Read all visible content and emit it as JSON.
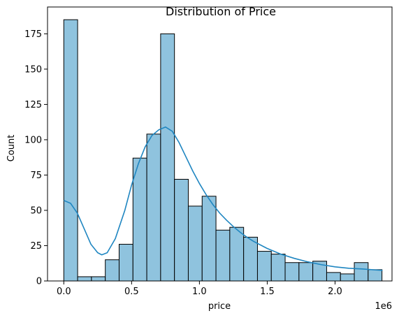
{
  "chart_data": {
    "type": "bar",
    "title": "Distribution of Price",
    "xlabel": "price",
    "ylabel": "Count",
    "x_offset_label": "1e6",
    "xlim": [
      -0.12,
      2.42
    ],
    "ylim": [
      0,
      194
    ],
    "x_ticks": [
      {
        "value": 0.0,
        "label": "0.0"
      },
      {
        "value": 0.5,
        "label": "0.5"
      },
      {
        "value": 1.0,
        "label": "1.0"
      },
      {
        "value": 1.5,
        "label": "1.5"
      },
      {
        "value": 2.0,
        "label": "2.0"
      }
    ],
    "y_ticks": [
      {
        "value": 0,
        "label": "0"
      },
      {
        "value": 25,
        "label": "25"
      },
      {
        "value": 50,
        "label": "50"
      },
      {
        "value": 75,
        "label": "75"
      },
      {
        "value": 100,
        "label": "100"
      },
      {
        "value": 125,
        "label": "125"
      },
      {
        "value": 150,
        "label": "150"
      },
      {
        "value": 175,
        "label": "175"
      }
    ],
    "bins": [
      {
        "x0": 0.0,
        "x1": 0.102,
        "count": 185
      },
      {
        "x0": 0.102,
        "x1": 0.204,
        "count": 3
      },
      {
        "x0": 0.204,
        "x1": 0.306,
        "count": 3
      },
      {
        "x0": 0.306,
        "x1": 0.408,
        "count": 15
      },
      {
        "x0": 0.408,
        "x1": 0.51,
        "count": 26
      },
      {
        "x0": 0.51,
        "x1": 0.612,
        "count": 87
      },
      {
        "x0": 0.612,
        "x1": 0.714,
        "count": 104
      },
      {
        "x0": 0.714,
        "x1": 0.816,
        "count": 175
      },
      {
        "x0": 0.816,
        "x1": 0.918,
        "count": 72
      },
      {
        "x0": 0.918,
        "x1": 1.02,
        "count": 53
      },
      {
        "x0": 1.02,
        "x1": 1.122,
        "count": 60
      },
      {
        "x0": 1.122,
        "x1": 1.224,
        "count": 36
      },
      {
        "x0": 1.224,
        "x1": 1.326,
        "count": 38
      },
      {
        "x0": 1.326,
        "x1": 1.428,
        "count": 31
      },
      {
        "x0": 1.428,
        "x1": 1.53,
        "count": 21
      },
      {
        "x0": 1.53,
        "x1": 1.632,
        "count": 19
      },
      {
        "x0": 1.632,
        "x1": 1.734,
        "count": 13
      },
      {
        "x0": 1.734,
        "x1": 1.836,
        "count": 13
      },
      {
        "x0": 1.836,
        "x1": 1.938,
        "count": 14
      },
      {
        "x0": 1.938,
        "x1": 2.04,
        "count": 6
      },
      {
        "x0": 2.04,
        "x1": 2.142,
        "count": 5
      },
      {
        "x0": 2.142,
        "x1": 2.244,
        "count": 13
      },
      {
        "x0": 2.244,
        "x1": 2.346,
        "count": 8
      }
    ],
    "kde": [
      [
        0.0,
        57
      ],
      [
        0.05,
        55
      ],
      [
        0.1,
        48
      ],
      [
        0.15,
        37
      ],
      [
        0.2,
        26
      ],
      [
        0.25,
        20
      ],
      [
        0.28,
        18.5
      ],
      [
        0.32,
        20
      ],
      [
        0.38,
        30
      ],
      [
        0.45,
        50
      ],
      [
        0.5,
        68
      ],
      [
        0.55,
        83
      ],
      [
        0.6,
        95
      ],
      [
        0.65,
        103
      ],
      [
        0.7,
        107
      ],
      [
        0.75,
        109
      ],
      [
        0.8,
        106
      ],
      [
        0.85,
        98
      ],
      [
        0.9,
        88
      ],
      [
        0.95,
        78
      ],
      [
        1.0,
        69
      ],
      [
        1.05,
        61
      ],
      [
        1.1,
        54
      ],
      [
        1.15,
        48
      ],
      [
        1.2,
        43
      ],
      [
        1.25,
        38.5
      ],
      [
        1.3,
        34.5
      ],
      [
        1.35,
        31
      ],
      [
        1.4,
        28
      ],
      [
        1.5,
        23
      ],
      [
        1.6,
        19
      ],
      [
        1.7,
        16
      ],
      [
        1.8,
        13.5
      ],
      [
        1.9,
        11.5
      ],
      [
        2.0,
        10
      ],
      [
        2.1,
        9
      ],
      [
        2.2,
        8.5
      ],
      [
        2.3,
        7.8
      ],
      [
        2.35,
        7.5
      ]
    ],
    "colors": {
      "bar_fill": "#8fc3de",
      "bar_edge": "#000000",
      "kde_line": "#1f86c1"
    },
    "grid": false,
    "legend": "none"
  }
}
